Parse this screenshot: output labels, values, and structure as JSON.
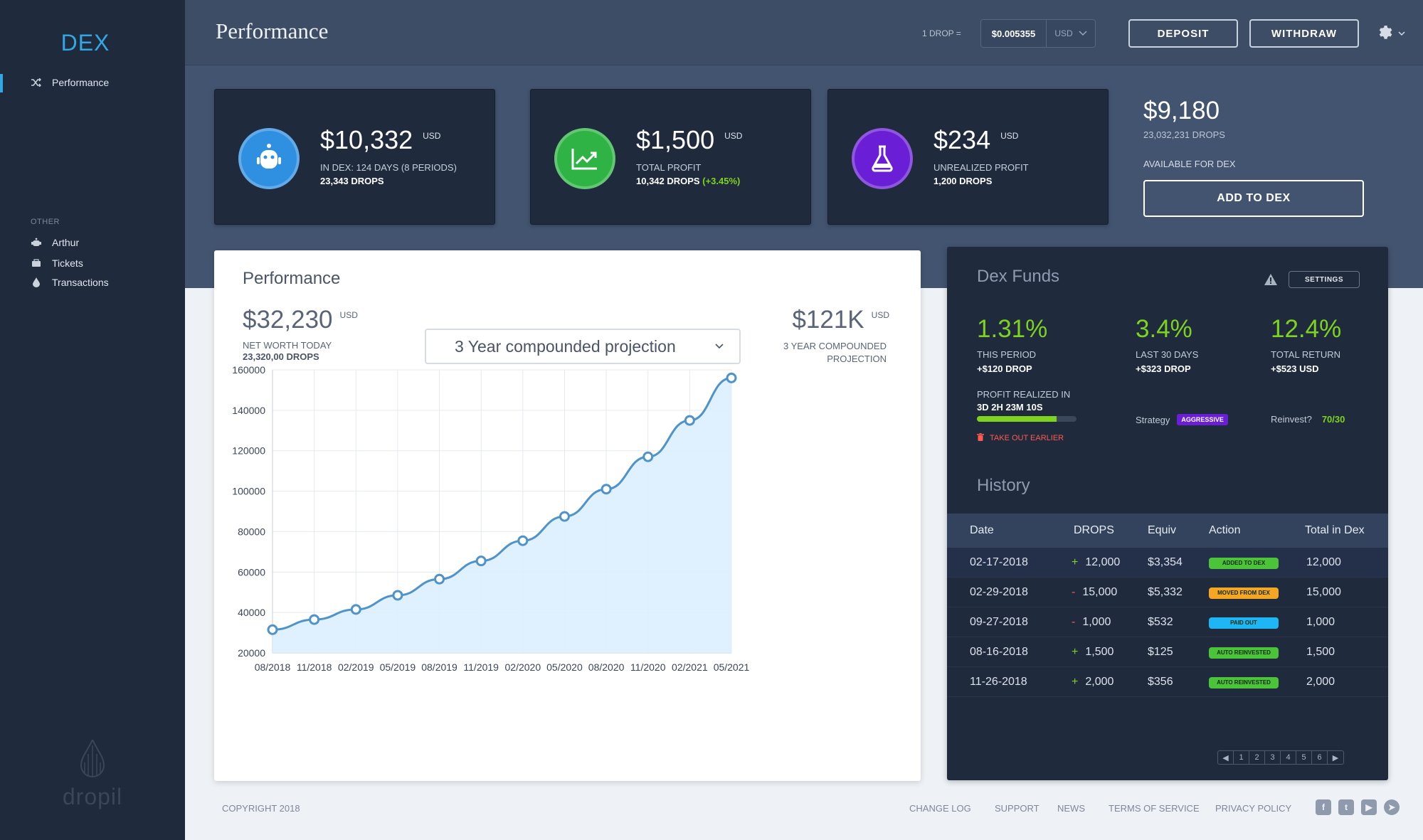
{
  "sidebar": {
    "brand": "DEX",
    "main_items": [
      {
        "label": "Performance",
        "icon": "shuffle-icon"
      }
    ],
    "other_label": "OTHER",
    "other_items": [
      {
        "label": "Arthur",
        "icon": "robot-icon"
      },
      {
        "label": "Tickets",
        "icon": "ticket-icon"
      },
      {
        "label": "Transactions",
        "icon": "drop-icon"
      }
    ],
    "logo_text": "dropil"
  },
  "header": {
    "title": "Performance",
    "drop_rate_label": "1 DROP =",
    "drop_rate_value": "$0.005355",
    "currency": "USD",
    "deposit_label": "DEPOSIT",
    "withdraw_label": "WITHDRAW"
  },
  "kpis": [
    {
      "amount": "$10,332",
      "unit": "USD",
      "line1": "IN DEX: 124 DAYS (8 PERIODS)",
      "line2": "23,343 DROPS",
      "icon": "robot-icon",
      "color": "#2f8fe0"
    },
    {
      "amount": "$1,500",
      "unit": "USD",
      "line1": "TOTAL PROFIT",
      "line2": "10,342 DROPS",
      "line2_extra": "(+3.45%)",
      "icon": "trend-up-icon",
      "color": "#2fb344"
    },
    {
      "amount": "$234",
      "unit": "USD",
      "line1": "UNREALIZED PROFIT",
      "line2": "1,200 DROPS",
      "icon": "flask-icon",
      "color": "#6a1fd6"
    }
  ],
  "available": {
    "amount": "$9,180",
    "drops": "23,032,231 DROPS",
    "label": "AVAILABLE FOR DEX",
    "button_label": "ADD TO DEX"
  },
  "performance": {
    "title": "Performance",
    "net_worth": "$32,230",
    "net_worth_unit": "USD",
    "net_worth_label": "NET WORTH TODAY",
    "net_worth_drops": "23,320,00 DROPS",
    "projection_select": "3 Year compounded projection",
    "projection_value": "$121K",
    "projection_unit": "USD",
    "projection_label_1": "3 YEAR  COMPOUNDED",
    "projection_label_2": "PROJECTION"
  },
  "chart_data": {
    "type": "area",
    "categories": [
      "08/2018",
      "11/2018",
      "02/2019",
      "05/2019",
      "08/2019",
      "11/2019",
      "02/2020",
      "05/2020",
      "08/2020",
      "11/2020",
      "02/2021",
      "05/2021"
    ],
    "series": [
      {
        "values": [
          31500,
          36500,
          41500,
          48500,
          56500,
          65500,
          75500,
          87500,
          101000,
          117000,
          135000,
          156000
        ]
      }
    ],
    "yticks": [
      "160000",
      "140000",
      "120000",
      "100000",
      "80000",
      "60000",
      "40000",
      "20000"
    ],
    "ylim": [
      20000,
      160000
    ],
    "grid": true,
    "line_color": "#4f93c8",
    "fill_color": "#dcefff"
  },
  "funds": {
    "title": "Dex Funds",
    "settings_label": "SETTINGS",
    "stats": [
      {
        "pct": "1.31%",
        "label": "THIS PERIOD",
        "sub": "+$120 DROP"
      },
      {
        "pct": "3.4%",
        "label": "LAST 30 DAYS",
        "sub": "+$323 DROP"
      },
      {
        "pct": "12.4%",
        "label": "TOTAL RETURN",
        "sub": "+$523 USD"
      }
    ],
    "profit_realized_label": "PROFIT REALIZED IN",
    "profit_realized_time": "3D 2H 23M 10S",
    "profit_progress": 0.8,
    "take_out_label": "TAKE OUT EARLIER",
    "strategy_label": "Strategy",
    "strategy_value": "AGGRESSIVE",
    "reinvest_label": "Reinvest?",
    "reinvest_value": "70/30"
  },
  "history": {
    "title": "History",
    "columns": [
      "Date",
      "DROPS",
      "Equiv",
      "Action",
      "Total in Dex"
    ],
    "rows": [
      {
        "date": "02-17-2018",
        "sign": "+",
        "drops": "12,000",
        "equiv": "$3,354",
        "action": "ADDED TO DEX",
        "action_color": "#4cc43a",
        "total": "12,000"
      },
      {
        "date": "02-29-2018",
        "sign": "-",
        "drops": "15,000",
        "equiv": "$5,332",
        "action": "MOVED FROM DEX",
        "action_color": "#f5a623",
        "total": "15,000"
      },
      {
        "date": "09-27-2018",
        "sign": "-",
        "drops": "1,000",
        "equiv": "$532",
        "action": "PAID OUT",
        "action_color": "#1eb6f5",
        "total": "1,000"
      },
      {
        "date": "08-16-2018",
        "sign": "+",
        "drops": "1,500",
        "equiv": "$125",
        "action": "AUTO REINVESTED",
        "action_color": "#4cc43a",
        "total": "1,500"
      },
      {
        "date": "11-26-2018",
        "sign": "+",
        "drops": "2,000",
        "equiv": "$356",
        "action": "AUTO REINVESTED",
        "action_color": "#4cc43a",
        "total": "2,000"
      }
    ],
    "pages": [
      "1",
      "2",
      "3",
      "4",
      "5",
      "6"
    ]
  },
  "footer": {
    "copyright": "COPYRIGHT 2018",
    "links": [
      "CHANGE LOG",
      "SUPPORT",
      "NEWS",
      "TERMS OF SERVICE",
      "PRIVACY POLICY"
    ],
    "social": [
      "facebook-icon",
      "twitter-icon",
      "youtube-icon",
      "telegram-icon"
    ]
  }
}
